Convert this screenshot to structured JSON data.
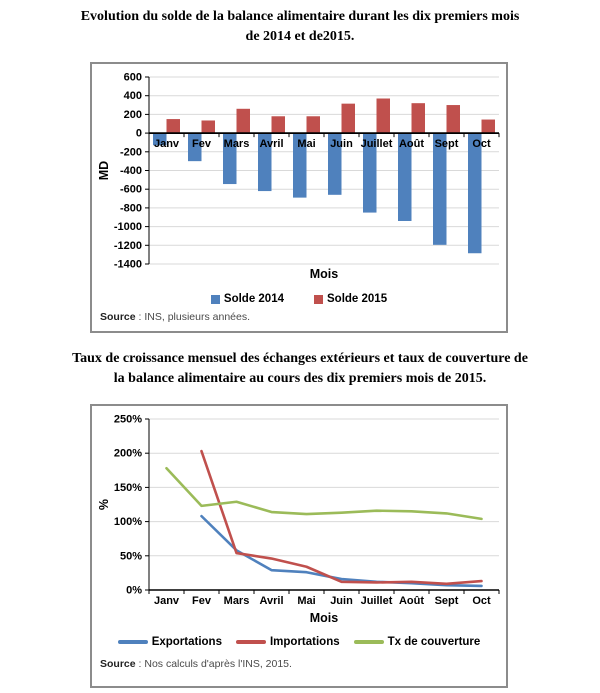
{
  "colors": {
    "blue": "#4F81BD",
    "red": "#C0504D",
    "green": "#9BBB59",
    "gridline": "#D9D9D9",
    "axis": "#000000",
    "box_border": "#8C8C8C"
  },
  "chart_data": [
    {
      "type": "bar",
      "title": "Evolution du solde de la balance alimentaire durant les dix premiers mois de 2014 et de2015.",
      "title_lines": [
        "Evolution du solde de la balance alimentaire durant les dix premiers mois",
        "de 2014 et de2015."
      ],
      "categories": [
        "Janv",
        "Fev",
        "Mars",
        "Avril",
        "Mai",
        "Juin",
        "Juillet",
        "Août",
        "Sept",
        "Oct"
      ],
      "series": [
        {
          "name": "Solde 2014",
          "color": "#4F81BD",
          "values": [
            -130,
            -300,
            -545,
            -620,
            -690,
            -660,
            -850,
            -940,
            -1195,
            -1285
          ]
        },
        {
          "name": "Solde 2015",
          "color": "#C0504D",
          "values": [
            150,
            135,
            260,
            180,
            180,
            315,
            370,
            320,
            300,
            145
          ]
        }
      ],
      "xlabel": "Mois",
      "ylabel": "MD",
      "ylim": [
        -1400,
        600
      ],
      "ytick_step": 200,
      "ytick_suffix": "",
      "grid": "horizontal",
      "legend_position": "bottom",
      "source_bold": "Source",
      "source_rest": " : INS, plusieurs années.",
      "source": "Source : INS, plusieurs années."
    },
    {
      "type": "line",
      "title": "Taux de croissance mensuel des échanges extérieurs et taux de couverture de la balance alimentaire au cours des dix premiers mois de 2015.",
      "title_lines": [
        "Taux de croissance mensuel des échanges extérieurs et taux de couverture de",
        "la balance alimentaire au cours des dix premiers mois de 2015."
      ],
      "categories": [
        "Janv",
        "Fev",
        "Mars",
        "Avril",
        "Mai",
        "Juin",
        "Juillet",
        "Août",
        "Sept",
        "Oct"
      ],
      "series": [
        {
          "name": "Exportations",
          "color": "#4F81BD",
          "values": [
            null,
            108,
            58,
            29,
            26,
            16,
            12,
            10,
            7,
            6
          ]
        },
        {
          "name": "Importations",
          "color": "#C0504D",
          "values": [
            null,
            203,
            54,
            46,
            34,
            12,
            11,
            12,
            9,
            13
          ]
        },
        {
          "name": "Tx de couverture",
          "color": "#9BBB59",
          "values": [
            178,
            123,
            129,
            114,
            111,
            113,
            116,
            115,
            112,
            104
          ]
        }
      ],
      "xlabel": "Mois",
      "ylabel": "%",
      "ylim": [
        0,
        250
      ],
      "ytick_step": 50,
      "ytick_suffix": "%",
      "grid": "horizontal",
      "legend_position": "bottom",
      "source_bold": "Source",
      "source_rest": " : Nos calculs d'après l'INS, 2015.",
      "source": "Source : Nos calculs d'après l'INS, 2015."
    }
  ]
}
